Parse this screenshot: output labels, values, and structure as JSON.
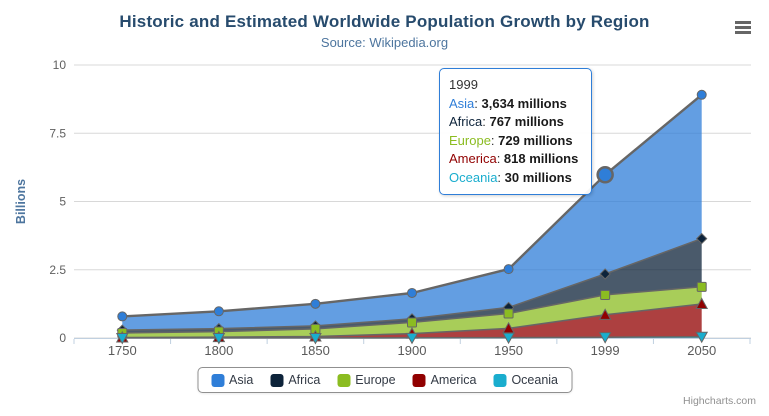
{
  "header": {
    "title": "Historic and Estimated Worldwide Population Growth by Region",
    "subtitle": "Source: Wikipedia.org"
  },
  "colors": {
    "title": "#274b6d",
    "subtitle": "#4d759e",
    "grid_line": "#d8d8d8",
    "axis_line": "#c0d0e0",
    "axis_label": "#606060",
    "series_outline": "#666666",
    "legend_border": "#909090",
    "legend_text": "#333a45",
    "tooltip_border": "#2f7ed8",
    "credits_text": "#909090"
  },
  "menu": {
    "icon": "hamburger-menu"
  },
  "tooltip": {
    "header": "1999",
    "rows": [
      {
        "name": "Asia",
        "color": "#2f7ed8",
        "value": "3,634 millions"
      },
      {
        "name": "Africa",
        "color": "#0d233a",
        "value": "767 millions"
      },
      {
        "name": "Europe",
        "color": "#8bbc21",
        "value": "729 millions"
      },
      {
        "name": "America",
        "color": "#910000",
        "value": "818 millions"
      },
      {
        "name": "Oceania",
        "color": "#1aadce",
        "value": "30 millions"
      }
    ]
  },
  "legend": {
    "items": [
      {
        "label": "Asia",
        "color": "#2f7ed8"
      },
      {
        "label": "Africa",
        "color": "#0d233a"
      },
      {
        "label": "Europe",
        "color": "#8bbc21"
      },
      {
        "label": "America",
        "color": "#910000"
      },
      {
        "label": "Oceania",
        "color": "#1aadce"
      }
    ]
  },
  "credits": {
    "label": "Highcharts.com"
  },
  "chart_data": {
    "type": "area",
    "stacking": "normal",
    "title": "Historic and Estimated Worldwide Population Growth by Region",
    "subtitle": "Source: Wikipedia.org",
    "unit": "millions",
    "ylabel": "Billions",
    "ylim": [
      0,
      10
    ],
    "yticks": [
      0,
      2.5,
      5,
      7.5,
      10
    ],
    "ytick_labels": [
      "0",
      "2.5",
      "5",
      "7.5",
      "10"
    ],
    "categories": [
      "1750",
      "1800",
      "1850",
      "1900",
      "1950",
      "1999",
      "2050"
    ],
    "series": [
      {
        "name": "Asia",
        "color": "#2f7ed8",
        "marker": "circle",
        "values": [
          502,
          635,
          809,
          947,
          1402,
          3634,
          5268
        ]
      },
      {
        "name": "Africa",
        "color": "#0d233a",
        "marker": "diamond",
        "values": [
          106,
          107,
          111,
          133,
          221,
          767,
          1766
        ]
      },
      {
        "name": "Europe",
        "color": "#8bbc21",
        "marker": "square",
        "values": [
          163,
          203,
          276,
          408,
          547,
          729,
          628
        ]
      },
      {
        "name": "America",
        "color": "#910000",
        "marker": "triangle",
        "values": [
          18,
          31,
          54,
          156,
          339,
          818,
          1201
        ]
      },
      {
        "name": "Oceania",
        "color": "#1aadce",
        "marker": "triangle-down",
        "values": [
          2,
          2,
          2,
          6,
          13,
          30,
          46
        ]
      }
    ],
    "fill_opacity": 0.75,
    "line_color": "#666666",
    "hover": {
      "series": "Asia",
      "category": "1999"
    },
    "legend_position": "bottom",
    "grid": "horizontal"
  }
}
